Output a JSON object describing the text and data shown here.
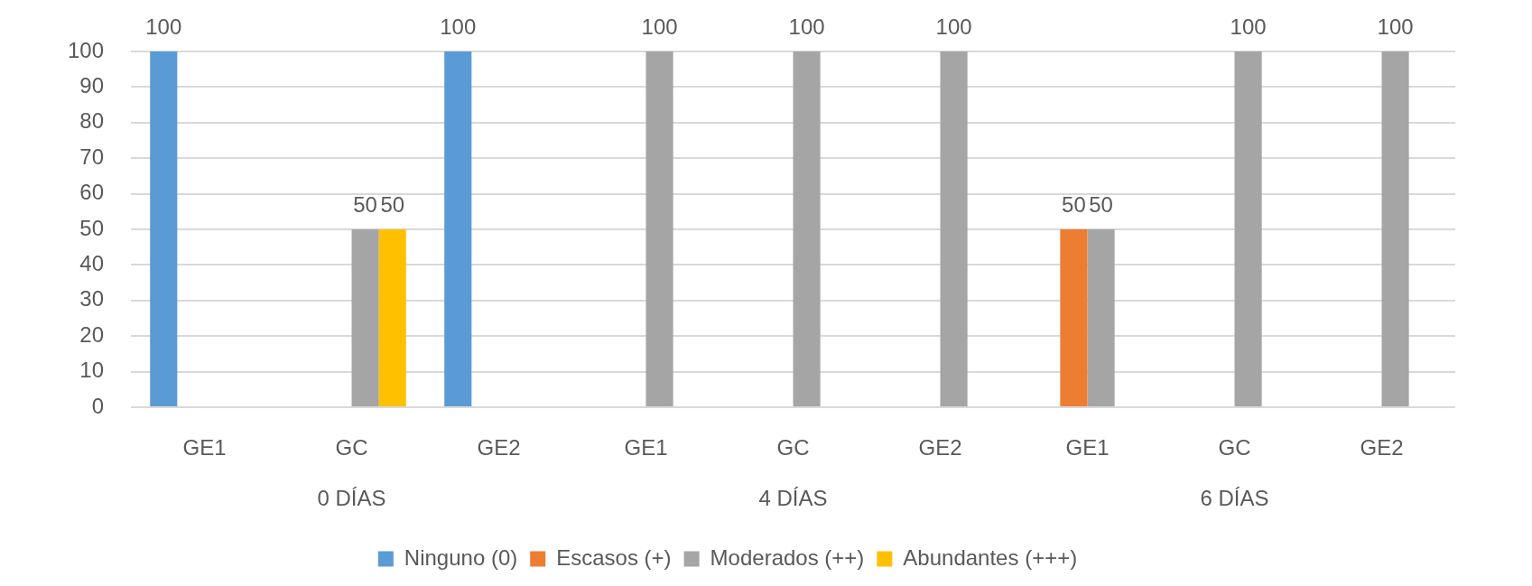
{
  "chart_data": {
    "type": "bar",
    "categories": [
      "GE1",
      "GC",
      "GE2",
      "GE1",
      "GC",
      "GE2",
      "GE1",
      "GC",
      "GE2"
    ],
    "series": [
      {
        "name": "Ninguno (0)",
        "color": "#5b9bd5",
        "values": [
          100,
          null,
          100,
          null,
          null,
          null,
          null,
          null,
          null
        ]
      },
      {
        "name": "Escasos (+)",
        "color": "#ed7d31",
        "values": [
          null,
          null,
          null,
          null,
          null,
          null,
          50,
          null,
          null
        ]
      },
      {
        "name": "Moderados (++)",
        "color": "#a5a5a5",
        "values": [
          null,
          50,
          null,
          100,
          100,
          100,
          50,
          100,
          100
        ]
      },
      {
        "name": "Abundantes (+++)",
        "color": "#ffc000",
        "values": [
          null,
          50,
          null,
          null,
          null,
          null,
          null,
          null,
          null
        ]
      }
    ],
    "annotations": [
      "0 DÍAS",
      "4 DÍAS",
      "6 DÍAS"
    ],
    "ylim": [
      0,
      100
    ],
    "yticks": [
      0,
      10,
      20,
      30,
      40,
      50,
      60,
      70,
      80,
      90,
      100
    ],
    "grid": "y",
    "legend": "bottom",
    "data_labels": true
  }
}
